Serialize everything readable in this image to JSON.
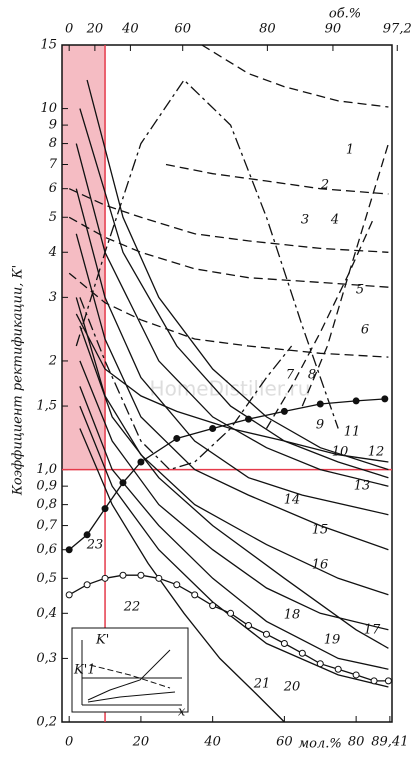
{
  "chart_data": {
    "type": "line",
    "ylabel": "Коэффициент ректификации, К'",
    "xlabel": "мол.%",
    "x2label": "об.%",
    "watermark": "HomeDistiller.ru",
    "log_y": true,
    "xlim": [
      -2,
      90
    ],
    "ylim": [
      0.2,
      15
    ],
    "xticks": [
      0,
      20,
      40,
      60,
      80,
      {
        "value": 89.41,
        "label": "89,41"
      }
    ],
    "x2ticks": [
      0,
      20,
      40,
      60,
      80,
      90,
      {
        "value": 97.2,
        "label": "97,2"
      }
    ],
    "yticks": [
      {
        "value": 0.2,
        "label": "0,2"
      },
      {
        "value": 0.3,
        "label": "0,3"
      },
      {
        "value": 0.4,
        "label": "0,4"
      },
      {
        "value": 0.5,
        "label": "0,5"
      },
      {
        "value": 0.6,
        "label": "0,6"
      },
      {
        "value": 0.7,
        "label": "0,7"
      },
      {
        "value": 0.8,
        "label": "0,8"
      },
      {
        "value": 0.9,
        "label": "0,9"
      },
      {
        "value": 1.0,
        "label": "1,0"
      },
      {
        "value": 1.5,
        "label": "1,5"
      },
      2,
      3,
      4,
      5,
      6,
      7,
      8,
      9,
      10,
      15
    ],
    "highlight": {
      "x": 10,
      "y": 1,
      "color": "#e53a4a",
      "fill": "#f5bcc3"
    },
    "series": [
      {
        "name": "1",
        "color": "#111",
        "style": "dash",
        "x": [
          37,
          50,
          60,
          75,
          89
        ],
        "values": [
          15,
          12.5,
          11.5,
          10.5,
          10.1
        ]
      },
      {
        "name": "2",
        "color": "#111",
        "style": "dash",
        "x": [
          27,
          40,
          55,
          70,
          89
        ],
        "values": [
          7,
          6.6,
          6.3,
          6,
          5.8
        ]
      },
      {
        "name": "3",
        "color": "#111",
        "style": "dashdot",
        "x": [
          2,
          10,
          20,
          32,
          45,
          55,
          65,
          75
        ],
        "values": [
          2.2,
          4,
          8,
          12,
          9,
          5,
          2.5,
          1.3
        ]
      },
      {
        "name": "4",
        "color": "#111",
        "style": "dash",
        "x": [
          0,
          10,
          20,
          35,
          50,
          70,
          89
        ],
        "values": [
          6,
          5.4,
          5,
          4.5,
          4.3,
          4.1,
          4
        ]
      },
      {
        "name": "5",
        "color": "#111",
        "style": "dash",
        "x": [
          0,
          10,
          20,
          35,
          50,
          70,
          89
        ],
        "values": [
          5,
          4.4,
          4,
          3.6,
          3.4,
          3.3,
          3.2
        ]
      },
      {
        "name": "6",
        "color": "#111",
        "style": "dash",
        "x": [
          0,
          10,
          20,
          35,
          50,
          70,
          89
        ],
        "values": [
          3.5,
          2.9,
          2.6,
          2.3,
          2.2,
          2.1,
          2.05
        ]
      },
      {
        "name": "7",
        "color": "#111",
        "style": "dash",
        "x": [
          65,
          72,
          78,
          84,
          89
        ],
        "values": [
          1.5,
          2.2,
          3.5,
          5.5,
          8
        ]
      },
      {
        "name": "8",
        "color": "#111",
        "style": "dash",
        "x": [
          55,
          62,
          70,
          78,
          85
        ],
        "values": [
          1.3,
          1.7,
          2.4,
          3.5,
          5
        ]
      },
      {
        "name": "9",
        "color": "#111",
        "style": "dashdot",
        "x": [
          3,
          10,
          20,
          28,
          35,
          45,
          55,
          62
        ],
        "values": [
          3,
          2,
          1.2,
          1,
          1.05,
          1.3,
          1.8,
          2.2
        ]
      },
      {
        "name": "10",
        "color": "#111",
        "style": "solid",
        "x": [
          2,
          10,
          20,
          30,
          45,
          60,
          75,
          89
        ],
        "values": [
          2.7,
          1.9,
          1.6,
          1.45,
          1.3,
          1.2,
          1.1,
          1.05
        ]
      },
      {
        "name": "11",
        "color": "#111",
        "style": "solid",
        "x": [
          5,
          15,
          25,
          40,
          55,
          70,
          89
        ],
        "values": [
          12,
          5,
          3,
          1.9,
          1.4,
          1.15,
          1
        ]
      },
      {
        "name": "12",
        "color": "#111",
        "style": "solid",
        "x": [
          3,
          15,
          30,
          45,
          60,
          75,
          89
        ],
        "values": [
          10,
          4,
          2.2,
          1.5,
          1.2,
          1.05,
          0.95
        ]
      },
      {
        "name": "13",
        "color": "#111",
        "style": "solid",
        "x": [
          2,
          10,
          25,
          40,
          55,
          70,
          89
        ],
        "values": [
          8,
          4,
          2,
          1.4,
          1.15,
          1,
          0.9
        ]
      },
      {
        "name": "14",
        "color": "#111",
        "style": "solid",
        "x": [
          2,
          10,
          20,
          35,
          50,
          65,
          89
        ],
        "values": [
          6,
          3,
          1.8,
          1.2,
          0.95,
          0.85,
          0.75
        ]
      },
      {
        "name": "15",
        "color": "#111",
        "style": "solid",
        "x": [
          2,
          10,
          20,
          35,
          50,
          70,
          89
        ],
        "values": [
          4.5,
          2.3,
          1.4,
          1,
          0.85,
          0.7,
          0.6
        ]
      },
      {
        "name": "16",
        "color": "#111",
        "style": "solid",
        "x": [
          2,
          10,
          20,
          35,
          55,
          75,
          89
        ],
        "values": [
          3,
          1.6,
          1.1,
          0.8,
          0.62,
          0.5,
          0.45
        ]
      },
      {
        "name": "17",
        "color": "#111",
        "style": "solid",
        "x": [
          3,
          12,
          25,
          40,
          60,
          80,
          89
        ],
        "values": [
          2.5,
          1.4,
          0.95,
          0.7,
          0.5,
          0.36,
          0.32
        ]
      },
      {
        "name": "18",
        "color": "#111",
        "style": "solid",
        "x": [
          3,
          12,
          25,
          40,
          55,
          70,
          89
        ],
        "values": [
          2,
          1.2,
          0.8,
          0.6,
          0.47,
          0.4,
          0.36
        ]
      },
      {
        "name": "19",
        "color": "#111",
        "style": "solid",
        "x": [
          3,
          12,
          25,
          40,
          55,
          75,
          89
        ],
        "values": [
          1.7,
          1,
          0.7,
          0.5,
          0.38,
          0.3,
          0.28
        ]
      },
      {
        "name": "20",
        "color": "#111",
        "style": "solid",
        "x": [
          3,
          12,
          25,
          40,
          55,
          75,
          89
        ],
        "values": [
          1.5,
          0.9,
          0.6,
          0.43,
          0.33,
          0.27,
          0.25
        ]
      },
      {
        "name": "21",
        "color": "#111",
        "style": "solid",
        "x": [
          3,
          12,
          22,
          32,
          42,
          52,
          60
        ],
        "values": [
          1.3,
          0.8,
          0.55,
          0.4,
          0.3,
          0.24,
          0.2
        ]
      },
      {
        "name": "22",
        "color": "#111",
        "style": "solid",
        "marker": "circle",
        "x": [
          0,
          5,
          10,
          15,
          20,
          25,
          30,
          35,
          40,
          45,
          50,
          55,
          60,
          65,
          70,
          75,
          80,
          85,
          89
        ],
        "values": [
          0.45,
          0.48,
          0.5,
          0.51,
          0.51,
          0.5,
          0.48,
          0.45,
          0.42,
          0.4,
          0.37,
          0.35,
          0.33,
          0.31,
          0.29,
          0.28,
          0.27,
          0.26,
          0.26
        ]
      },
      {
        "name": "23",
        "color": "#111",
        "style": "solid",
        "marker": "dot",
        "x": [
          0,
          5,
          10,
          15,
          20,
          30,
          40,
          50,
          60,
          70,
          80,
          88
        ],
        "values": [
          0.6,
          0.66,
          0.78,
          0.92,
          1.05,
          1.22,
          1.3,
          1.38,
          1.45,
          1.52,
          1.55,
          1.57
        ]
      }
    ],
    "inset": {
      "ylabel": "K'",
      "refline": "K'1",
      "xlabel": "x"
    }
  }
}
